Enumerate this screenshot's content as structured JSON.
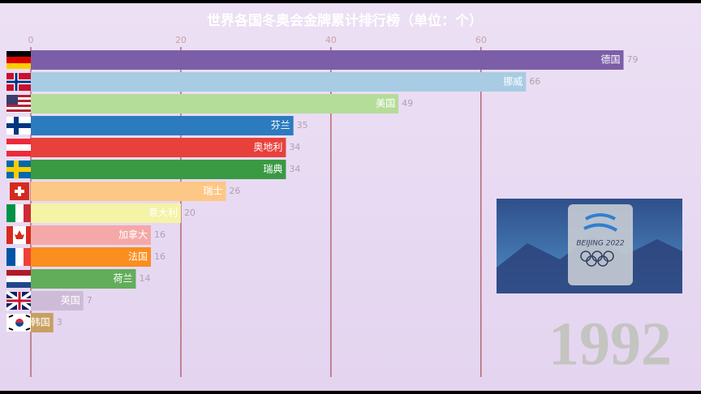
{
  "chart_data": {
    "type": "barh",
    "title": "世界各国冬奥会金牌累计排行榜（单位：个）",
    "annotation": "1992",
    "logo_text": "BEIJING 2022",
    "categories": [
      "德国",
      "挪威",
      "美国",
      "芬兰",
      "奥地利",
      "瑞典",
      "瑞士",
      "意大利",
      "加拿大",
      "法国",
      "荷兰",
      "英国",
      "韩国"
    ],
    "values": [
      79,
      66,
      49,
      35,
      34,
      34,
      26,
      20,
      16,
      16,
      14,
      7,
      3
    ],
    "colors": [
      "#7b5ea7",
      "#a8cce4",
      "#b5dd9a",
      "#2c7bbf",
      "#e8413c",
      "#3a9a44",
      "#fdc886",
      "#f5f3a6",
      "#f5a8a8",
      "#fa8e1e",
      "#62ad5a",
      "#cdbbd8",
      "#c8a060"
    ],
    "xlim": [
      0,
      89
    ],
    "xticks": [
      0,
      20,
      40,
      60
    ],
    "grid": true
  }
}
